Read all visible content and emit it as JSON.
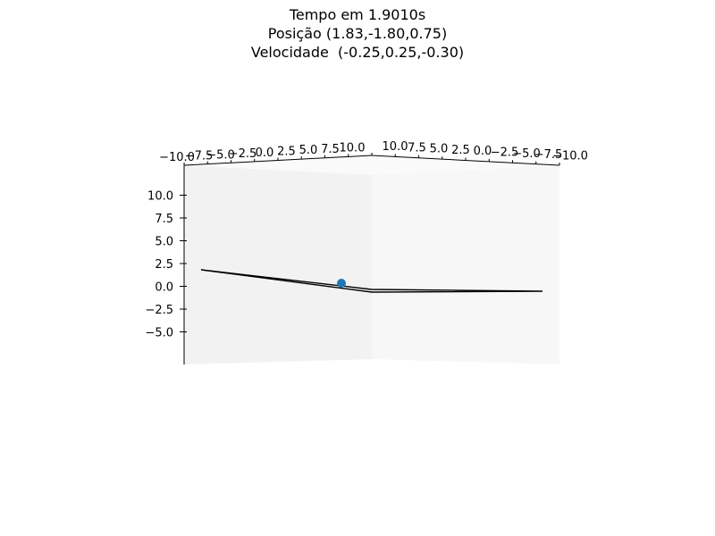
{
  "title_lines": [
    "Tempo em 1.9010s",
    "Posição (1.83,-1.80,0.75)",
    "Velocidade  (-0.25,0.25,-0.30)"
  ],
  "chart_data": {
    "type": "scatter",
    "projection": "3d",
    "title": "Tempo em 1.9010s\nPosição (1.83,-1.80,0.75)\nVelocidade  (-0.25,0.25,-0.30)",
    "xlim": [
      -10,
      10
    ],
    "ylim": [
      -10,
      10
    ],
    "zlim": [
      -7.5,
      12.5
    ],
    "x_ticks": [
      "−10.0",
      "−7.5",
      "−5.0",
      "−2.5",
      "0.0",
      "2.5",
      "5.0",
      "7.5",
      "10.0"
    ],
    "y_ticks": [
      "10.0",
      "7.5",
      "5.0",
      "2.5",
      "0.0",
      "−2.5",
      "−5.0",
      "−7.5",
      "−10.0"
    ],
    "z_ticks": [
      "−5.0",
      "−2.5",
      "0.0",
      "2.5",
      "5.0",
      "7.5",
      "10.0"
    ],
    "point": {
      "x": 1.83,
      "y": -1.8,
      "z": 0.75,
      "color": "#1f77b4"
    },
    "surface_line": {
      "color": "#000000"
    },
    "pane_colors": {
      "left": "#f2f2f2",
      "right": "#f7f7f7",
      "top": "#fafafa"
    }
  }
}
